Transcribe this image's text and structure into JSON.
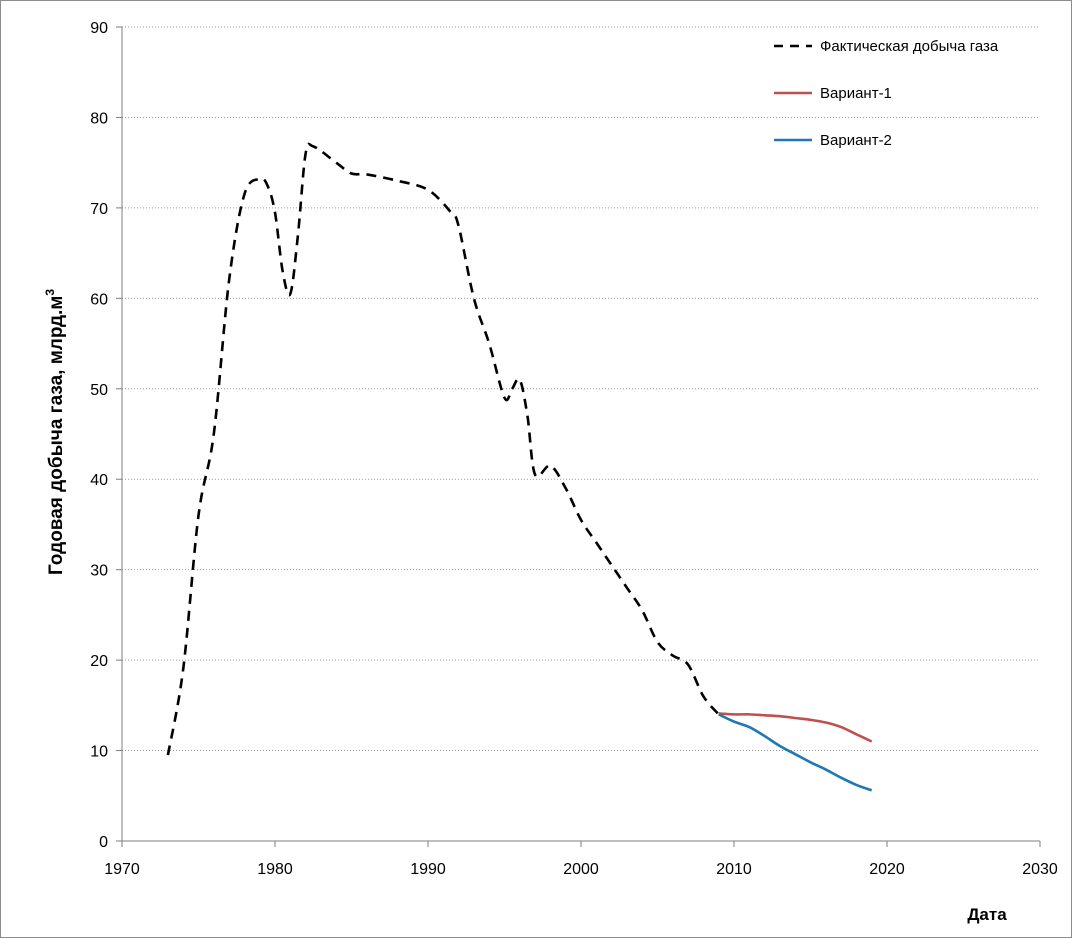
{
  "chart_data": {
    "type": "line",
    "title": "",
    "xlabel": "Дата",
    "ylabel": "Годовая добыча газа, млрд.м",
    "ylabel_sup": "3",
    "xlim": [
      1970,
      2030
    ],
    "ylim": [
      0,
      90
    ],
    "xticks": [
      1970,
      1980,
      1990,
      2000,
      2010,
      2020,
      2030
    ],
    "yticks": [
      0,
      10,
      20,
      30,
      40,
      50,
      60,
      70,
      80,
      90
    ],
    "grid": "horizontal",
    "legend_position": "top-right",
    "series": [
      {
        "name": "Фактическая добыча газа",
        "color": "#000000",
        "style": "dashed",
        "points": [
          [
            1973,
            9.5
          ],
          [
            1974,
            19
          ],
          [
            1975,
            36
          ],
          [
            1976,
            45
          ],
          [
            1977,
            62
          ],
          [
            1978,
            71.5
          ],
          [
            1979,
            73.2
          ],
          [
            1979.5,
            72.5
          ],
          [
            1980,
            69.5
          ],
          [
            1980.5,
            63
          ],
          [
            1981,
            60.5
          ],
          [
            1981.5,
            67
          ],
          [
            1982,
            76
          ],
          [
            1982.5,
            76.8
          ],
          [
            1984,
            75
          ],
          [
            1985,
            73.8
          ],
          [
            1986,
            73.7
          ],
          [
            1988,
            73
          ],
          [
            1990,
            72
          ],
          [
            1991.5,
            69.5
          ],
          [
            1992,
            68
          ],
          [
            1993,
            60
          ],
          [
            1994,
            55
          ],
          [
            1995,
            49
          ],
          [
            1995.5,
            50
          ],
          [
            1996,
            51
          ],
          [
            1996.5,
            47
          ],
          [
            1997,
            40.5
          ],
          [
            1998,
            41.5
          ],
          [
            1999,
            39
          ],
          [
            2000,
            35.5
          ],
          [
            2001,
            33
          ],
          [
            2002,
            30.5
          ],
          [
            2003,
            28
          ],
          [
            2004,
            25.5
          ],
          [
            2005,
            22
          ],
          [
            2006,
            20.5
          ],
          [
            2007,
            19.5
          ],
          [
            2008,
            16
          ],
          [
            2009,
            14
          ]
        ]
      },
      {
        "name": "Вариант-1",
        "color": "#c0504d",
        "style": "solid",
        "points": [
          [
            2009,
            14.1
          ],
          [
            2010,
            14.0
          ],
          [
            2011,
            14.0
          ],
          [
            2012,
            13.9
          ],
          [
            2013,
            13.8
          ],
          [
            2014,
            13.6
          ],
          [
            2015,
            13.4
          ],
          [
            2016,
            13.1
          ],
          [
            2017,
            12.6
          ],
          [
            2018,
            11.8
          ],
          [
            2019,
            11.0
          ]
        ]
      },
      {
        "name": "Вариант-2",
        "color": "#1f77b4",
        "style": "solid",
        "points": [
          [
            2009,
            14.0
          ],
          [
            2010,
            13.2
          ],
          [
            2011,
            12.6
          ],
          [
            2012,
            11.6
          ],
          [
            2013,
            10.5
          ],
          [
            2014,
            9.6
          ],
          [
            2015,
            8.7
          ],
          [
            2016,
            7.9
          ],
          [
            2017,
            7.0
          ],
          [
            2018,
            6.2
          ],
          [
            2019,
            5.6
          ]
        ]
      }
    ]
  }
}
